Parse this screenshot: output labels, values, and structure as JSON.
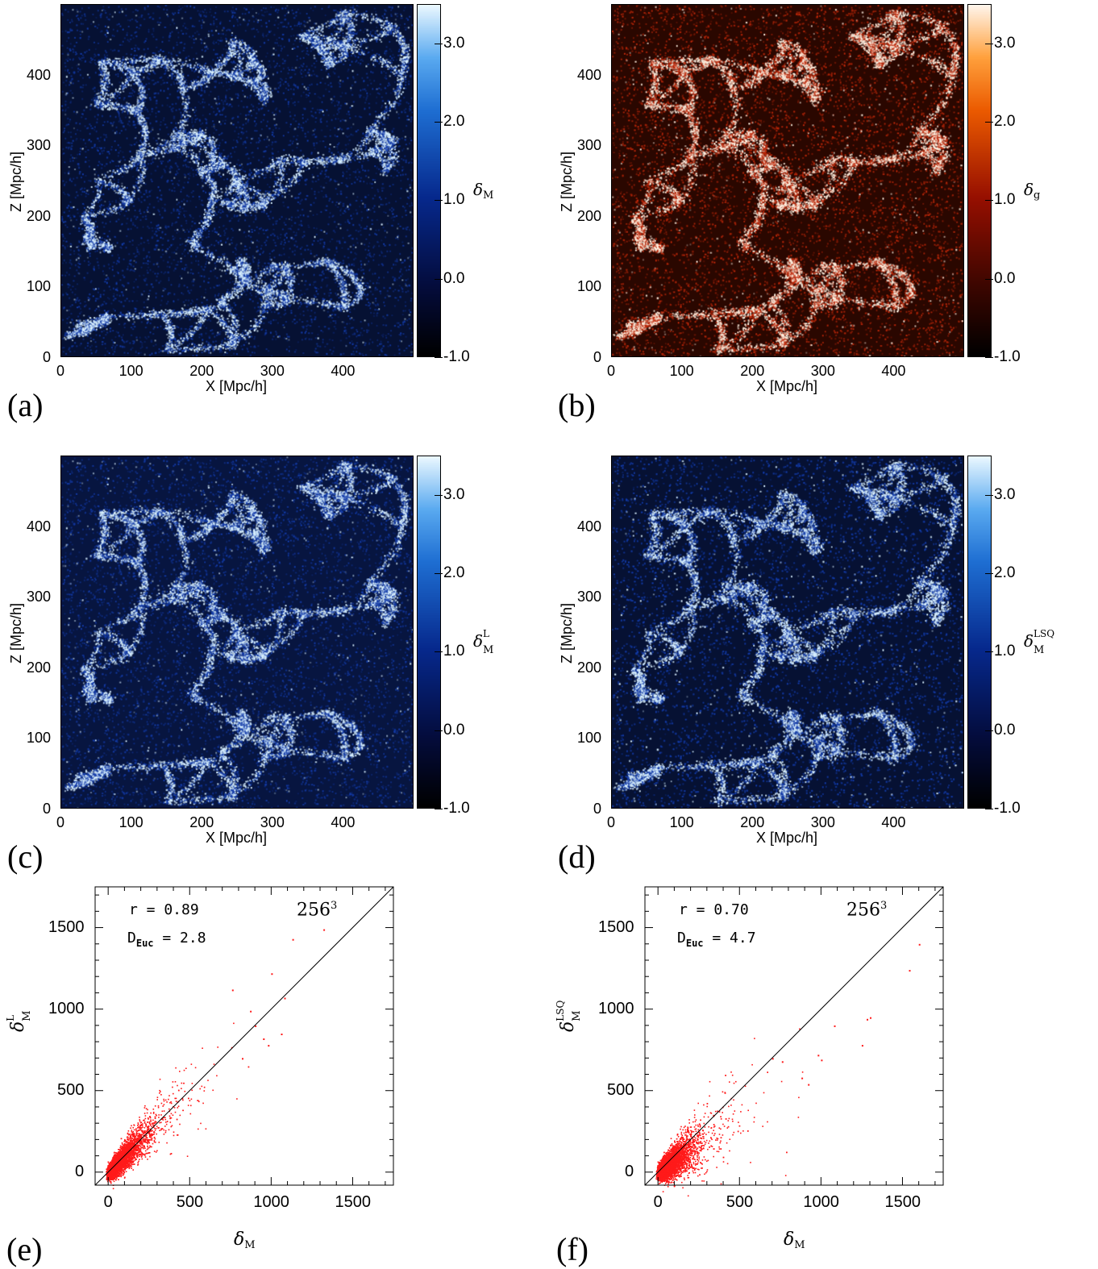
{
  "maps": [
    {
      "id": "a",
      "label": "(a)",
      "xlabel": "X [Mpc/h]",
      "ylabel": "Z [Mpc/h]",
      "cbar_label": "δ",
      "cbar_sub": "M",
      "cbar_sup": "",
      "colormap": "blue",
      "xticks": [
        "0",
        "100",
        "200",
        "300",
        "400"
      ],
      "yticks": [
        "0",
        "100",
        "200",
        "300",
        "400"
      ],
      "cbticks": [
        "-1.0",
        "0.0",
        "1.0",
        "2.0",
        "3.0"
      ],
      "bg": "#061133",
      "filament": "#d8f0ff",
      "noise": 0.18
    },
    {
      "id": "b",
      "label": "(b)",
      "xlabel": "X [Mpc/h]",
      "ylabel": "Z [Mpc/h]",
      "cbar_label": "δ",
      "cbar_sub": "g",
      "cbar_sup": "",
      "colormap": "red",
      "xticks": [
        "0",
        "100",
        "200",
        "300",
        "400"
      ],
      "yticks": [
        "0",
        "100",
        "200",
        "300",
        "400"
      ],
      "cbticks": [
        "-1.0",
        "0.0",
        "1.0",
        "2.0",
        "3.0"
      ],
      "bg": "#2a0700",
      "filament": "#fff0e0",
      "noise": 0.45
    },
    {
      "id": "c",
      "label": "(c)",
      "xlabel": "X [Mpc/h]",
      "ylabel": "Z [Mpc/h]",
      "cbar_label": "δ",
      "cbar_sub": "M",
      "cbar_sup": "L",
      "colormap": "blue",
      "xticks": [
        "0",
        "100",
        "200",
        "300",
        "400"
      ],
      "yticks": [
        "0",
        "100",
        "200",
        "300",
        "400"
      ],
      "cbticks": [
        "-1.0",
        "0.0",
        "1.0",
        "2.0",
        "3.0"
      ],
      "bg": "#071540",
      "filament": "#d8f0ff",
      "noise": 0.3
    },
    {
      "id": "d",
      "label": "(d)",
      "xlabel": "X [Mpc/h]",
      "ylabel": "Z [Mpc/h]",
      "cbar_label": "δ",
      "cbar_sub": "M",
      "cbar_sup": "LSQ",
      "colormap": "blue",
      "xticks": [
        "0",
        "100",
        "200",
        "300",
        "400"
      ],
      "yticks": [
        "0",
        "100",
        "200",
        "300",
        "400"
      ],
      "cbticks": [
        "-1.0",
        "0.0",
        "1.0",
        "2.0",
        "3.0"
      ],
      "bg": "#061133",
      "filament": "#d8f0ff",
      "noise": 0.5
    }
  ],
  "chart_data": [
    {
      "type": "heatmap",
      "title": "",
      "xlabel": "X [Mpc/h]",
      "ylabel": "Z [Mpc/h]",
      "xlim": [
        0,
        500
      ],
      "ylim": [
        0,
        500
      ],
      "colorbar": {
        "label": "δ_M",
        "range": [
          -1.0,
          3.5
        ],
        "ticks": [
          -1.0,
          0.0,
          1.0,
          2.0,
          3.0
        ]
      }
    },
    {
      "type": "heatmap",
      "title": "",
      "xlabel": "X [Mpc/h]",
      "ylabel": "Z [Mpc/h]",
      "xlim": [
        0,
        500
      ],
      "ylim": [
        0,
        500
      ],
      "colorbar": {
        "label": "δ_g",
        "range": [
          -1.0,
          3.5
        ],
        "ticks": [
          -1.0,
          0.0,
          1.0,
          2.0,
          3.0
        ]
      }
    },
    {
      "type": "heatmap",
      "title": "",
      "xlabel": "X [Mpc/h]",
      "ylabel": "Z [Mpc/h]",
      "xlim": [
        0,
        500
      ],
      "ylim": [
        0,
        500
      ],
      "colorbar": {
        "label": "δ_M^L",
        "range": [
          -1.0,
          3.5
        ],
        "ticks": [
          -1.0,
          0.0,
          1.0,
          2.0,
          3.0
        ]
      }
    },
    {
      "type": "heatmap",
      "title": "",
      "xlabel": "X [Mpc/h]",
      "ylabel": "Z [Mpc/h]",
      "xlim": [
        0,
        500
      ],
      "ylim": [
        0,
        500
      ],
      "colorbar": {
        "label": "δ_M^LSQ",
        "range": [
          -1.0,
          3.5
        ],
        "ticks": [
          -1.0,
          0.0,
          1.0,
          2.0,
          3.0
        ]
      }
    },
    {
      "type": "scatter",
      "xlabel": "δ_M",
      "ylabel": "δ_M^L",
      "xlim": [
        -80,
        1750
      ],
      "ylim": [
        -80,
        1750
      ],
      "xticks": [
        0,
        500,
        1000,
        1500
      ],
      "yticks": [
        0,
        500,
        1000,
        1500
      ],
      "r": "0.89",
      "D_Euc": "2.8",
      "resolution": "256^3",
      "slope": 1.0,
      "spread": 0.22,
      "outliers": [
        [
          1320,
          1490
        ],
        [
          1130,
          1430
        ],
        [
          1080,
          1070
        ],
        [
          1000,
          1220
        ],
        [
          1060,
          850
        ],
        [
          950,
          820
        ],
        [
          900,
          900
        ],
        [
          870,
          990
        ],
        [
          760,
          1120
        ],
        [
          980,
          780
        ],
        [
          820,
          700
        ]
      ]
    },
    {
      "type": "scatter",
      "xlabel": "δ_M",
      "ylabel": "δ_M^LSQ",
      "xlim": [
        -80,
        1750
      ],
      "ylim": [
        -80,
        1750
      ],
      "xticks": [
        0,
        500,
        1000,
        1500
      ],
      "yticks": [
        0,
        500,
        1000,
        1500
      ],
      "r": "0.70",
      "D_Euc": "4.7",
      "resolution": "256^3",
      "slope": 0.72,
      "spread": 0.3,
      "outliers": [
        [
          1600,
          1400
        ],
        [
          1540,
          1240
        ],
        [
          1300,
          950
        ],
        [
          1280,
          940
        ],
        [
          1250,
          780
        ],
        [
          1080,
          900
        ],
        [
          980,
          720
        ],
        [
          1000,
          690
        ],
        [
          920,
          540
        ],
        [
          880,
          580
        ],
        [
          700,
          700
        ],
        [
          760,
          680
        ]
      ]
    }
  ],
  "scatters": [
    {
      "id": "e",
      "label": "(e)",
      "r_text": "r = 0.89",
      "deuc_value": "2.8",
      "res": "256",
      "res_exp": "3",
      "xlabel_sub": "M",
      "ylabel_sup": "L",
      "xticks": [
        "0",
        "500",
        "1000",
        "1500"
      ],
      "yticks": [
        "0",
        "500",
        "1000",
        "1500"
      ]
    },
    {
      "id": "f",
      "label": "(f)",
      "r_text": "r = 0.70",
      "deuc_value": "4.7",
      "res": "256",
      "res_exp": "3",
      "xlabel_sub": "M",
      "ylabel_sup": "LSQ",
      "xticks": [
        "0",
        "500",
        "1000",
        "1500"
      ],
      "yticks": [
        "0",
        "500",
        "1000",
        "1500"
      ]
    }
  ],
  "deuc_label": "D",
  "deuc_sub": "Euc",
  "deuc_eq": "=",
  "delta": "δ"
}
